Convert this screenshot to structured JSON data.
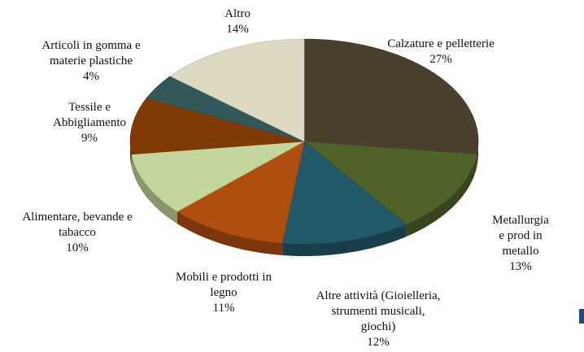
{
  "chart_data": {
    "type": "pie",
    "categories": [
      "Calzature e pelletterie",
      "Metallurgia e prod in\nmetallo",
      "Altre attività (Gioielleria,\nstrumenti musicali,\ngiochi)",
      "Mobili e prodotti in\nlegno",
      "Alimentare, bevande e\ntabacco",
      "Tessile e\nAbbigliamento",
      "Articoli in gomma e\nmaterie plastiche",
      "Altro"
    ],
    "values": [
      27,
      13,
      12,
      11,
      10,
      9,
      4,
      14
    ],
    "value_labels": [
      "27%",
      "13%",
      "12%",
      "11%",
      "10%",
      "9%",
      "4%",
      "14%"
    ],
    "colors": [
      "#4a3f2c",
      "#4f6228",
      "#215968",
      "#b04e0f",
      "#c3d69b",
      "#7f3a06",
      "#31595a",
      "#ddd9c3"
    ]
  }
}
